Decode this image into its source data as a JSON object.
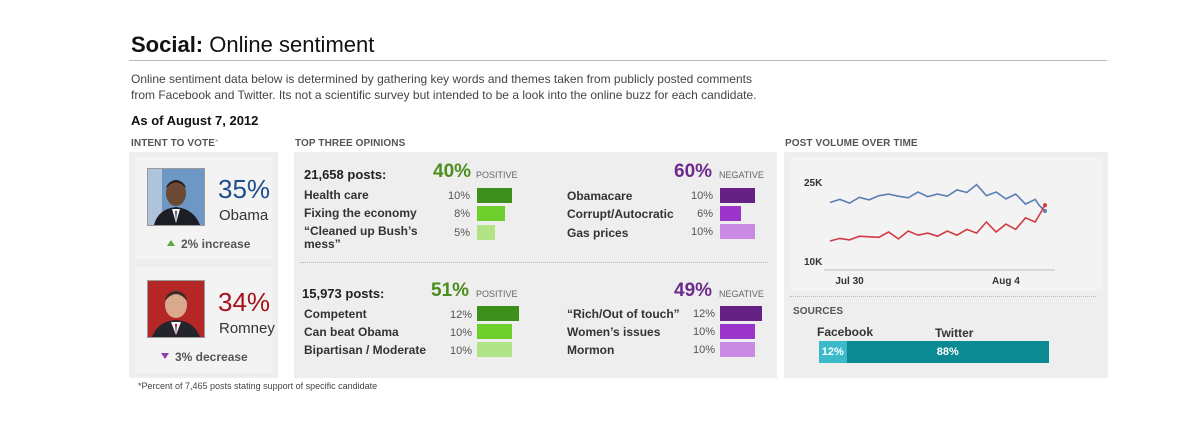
{
  "header": {
    "title_bold": "Social:",
    "title_rest": "Online sentiment",
    "description_line1": "Online sentiment data below is determined by gathering key words and themes taken from publicly posted comments",
    "description_line2": "from Facebook and Twitter. Its not a scientific survey but intended to be a look into the online buzz for each candidate.",
    "as_of": "As of August 7, 2012"
  },
  "intent": {
    "heading": "INTENT TO VOTE",
    "heading_mark": "*",
    "candidates": [
      {
        "pct": "35%",
        "name": "Obama",
        "change": "2% increase",
        "direction": "up",
        "color": "#1e4d8c"
      },
      {
        "pct": "34%",
        "name": "Romney",
        "change": "3% decrease",
        "direction": "down",
        "color": "#a5131b"
      }
    ]
  },
  "opinions": {
    "heading": "TOP THREE OPINIONS",
    "positive_label": "POSITIVE",
    "negative_label": "NEGATIVE",
    "colors": {
      "pos_dark": "#3e8e1b",
      "pos_mid": "#6ccf2c",
      "pos_light": "#b0e487",
      "neg_dark": "#662185",
      "neg_mid": "#9b35c9",
      "neg_light": "#c98ae3"
    },
    "groups": [
      {
        "posts": "21,658 posts:",
        "positive_pct": "40%",
        "negative_pct": "60%",
        "positive": [
          {
            "label": "Health care",
            "pct": "10%",
            "value": 10
          },
          {
            "label": "Fixing the economy",
            "pct": "8%",
            "value": 8
          },
          {
            "label": "“Cleaned up Bush’s mess”",
            "pct": "5%",
            "value": 5
          }
        ],
        "negative": [
          {
            "label": "Obamacare",
            "pct": "10%",
            "value": 10
          },
          {
            "label": "Corrupt/Autocratic",
            "pct": "6%",
            "value": 6
          },
          {
            "label": "Gas prices",
            "pct": "10%",
            "value": 10
          }
        ]
      },
      {
        "posts": "15,973 posts:",
        "positive_pct": "51%",
        "negative_pct": "49%",
        "positive": [
          {
            "label": "Competent",
            "pct": "12%",
            "value": 12
          },
          {
            "label": "Can beat Obama",
            "pct": "10%",
            "value": 10
          },
          {
            "label": "Bipartisan / Moderate",
            "pct": "10%",
            "value": 10
          }
        ],
        "negative": [
          {
            "label": "“Rich/Out of touch”",
            "pct": "12%",
            "value": 12
          },
          {
            "label": "Women’s issues",
            "pct": "10%",
            "value": 10
          },
          {
            "label": "Mormon",
            "pct": "10%",
            "value": 10
          }
        ]
      }
    ]
  },
  "chart_data": {
    "type": "line",
    "title": "POST VOLUME OVER TIME",
    "y_ticks": [
      "25K",
      "10K"
    ],
    "ylim": [
      10000,
      25000
    ],
    "x_ticks": [
      "Jul 30",
      "Aug 4"
    ],
    "x_tick_positions": [
      1,
      9
    ],
    "x_range": [
      0,
      11
    ],
    "grid": false,
    "series": [
      {
        "color": "#5b7fb5",
        "x": [
          0,
          0.5,
          1,
          1.5,
          2,
          2.5,
          3,
          3.5,
          4,
          4.5,
          5,
          5.5,
          6,
          6.5,
          7,
          7.5,
          8,
          8.5,
          9,
          9.5,
          10,
          10.5,
          10.7,
          11
        ],
        "values": [
          21100,
          21700,
          21000,
          22100,
          21600,
          22400,
          22700,
          22300,
          22000,
          23100,
          22200,
          22700,
          22300,
          23500,
          23000,
          24500,
          22400,
          23100,
          21800,
          22700,
          20800,
          21700,
          20600,
          19500
        ]
      },
      {
        "color": "#d23a44",
        "x": [
          0,
          0.5,
          1,
          1.5,
          2,
          2.5,
          3,
          3.5,
          4,
          4.5,
          5,
          5.5,
          6,
          6.5,
          7,
          7.5,
          8,
          8.5,
          9,
          9.5,
          10,
          10.5,
          11
        ],
        "values": [
          13800,
          14300,
          14000,
          14700,
          14600,
          14500,
          15500,
          14200,
          15700,
          14900,
          15300,
          14700,
          15700,
          14900,
          16000,
          15300,
          17400,
          15500,
          17000,
          16000,
          18200,
          17400,
          20600
        ]
      }
    ]
  },
  "sources": {
    "heading": "SOURCES",
    "items": [
      {
        "name": "Facebook",
        "pct": "12%",
        "value": 12,
        "color": "#3bbbc9"
      },
      {
        "name": "Twitter",
        "pct": "88%",
        "value": 88,
        "color": "#0b8a93"
      }
    ]
  },
  "footnote": "*Percent of 7,465 posts stating support of specific candidate"
}
